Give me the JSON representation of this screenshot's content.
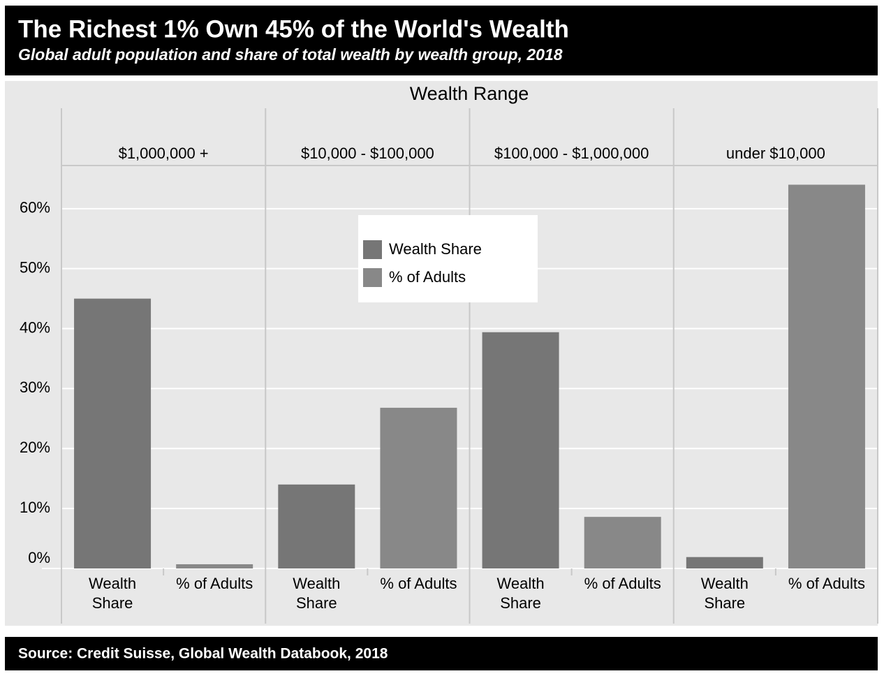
{
  "chart_data": {
    "type": "bar",
    "title": "The Richest 1% Own 45% of the World's Wealth",
    "subtitle": "Global adult population and share of total wealth by wealth group, 2018",
    "facet_label": "Wealth Range",
    "categories": [
      "$1,000,000 +",
      "$10,000 - $100,000",
      "$100,000 - $1,000,000",
      "under $10,000"
    ],
    "series": [
      {
        "name": "Wealth Share",
        "color": "#767676",
        "values": [
          45,
          14,
          39.4,
          1.9
        ]
      },
      {
        "name": "% of Adults",
        "color": "#888888",
        "values": [
          0.7,
          26.8,
          8.6,
          64
        ]
      }
    ],
    "ylim": [
      0,
      67.2
    ],
    "yticks": [
      {
        "value": 0,
        "label": "0%"
      },
      {
        "value": 10,
        "label": "10%"
      },
      {
        "value": 20,
        "label": "20%"
      },
      {
        "value": 30,
        "label": "30%"
      },
      {
        "value": 40,
        "label": "40%"
      },
      {
        "value": 50,
        "label": "50%"
      },
      {
        "value": 60,
        "label": "60%"
      }
    ],
    "grid": true,
    "legend": "top-center",
    "source": "Source: Credit Suisse, Global Wealth Databook, 2018"
  }
}
